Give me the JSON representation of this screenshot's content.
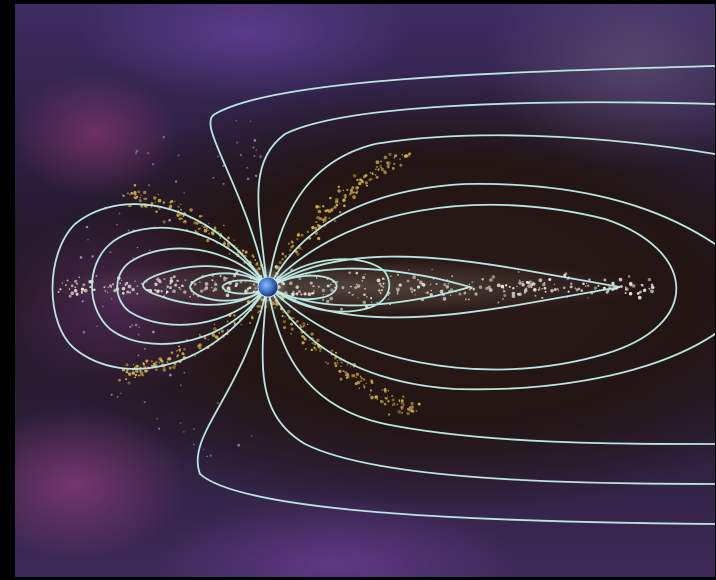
{
  "image": {
    "subject": "",
    "colors": {
      "background_frame": "#000000",
      "field_lines": "#b9e6e0",
      "particles_inner": "#e9e4d6",
      "particles_outer_belt": "#d9b84a",
      "planet": "#3c6fbf"
    }
  }
}
